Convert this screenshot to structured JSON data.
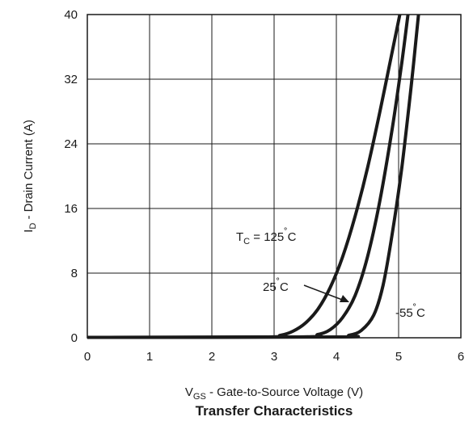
{
  "chart_data": {
    "type": "line",
    "title": "Transfer Characteristics",
    "xlabel": {
      "main": "V",
      "sub": "GS",
      "rest": "  -  Gate-to-Source Voltage (V)"
    },
    "ylabel": {
      "main": "I",
      "sub": "D",
      "rest": "  -  Drain Current (A)"
    },
    "xlim": [
      0,
      6
    ],
    "ylim": [
      0,
      40
    ],
    "x_ticks": [
      0,
      1,
      2,
      3,
      4,
      5,
      6
    ],
    "y_ticks": [
      0,
      8,
      16,
      24,
      32,
      40
    ],
    "grid": true,
    "series": [
      {
        "name": "T_C = 125°C",
        "points": [
          [
            0,
            0.05
          ],
          [
            2.8,
            0.1
          ],
          [
            3.1,
            0.3
          ],
          [
            3.3,
            0.8
          ],
          [
            3.5,
            1.8
          ],
          [
            3.7,
            3.5
          ],
          [
            3.9,
            6.2
          ],
          [
            4.1,
            10
          ],
          [
            4.3,
            15
          ],
          [
            4.5,
            21
          ],
          [
            4.7,
            28
          ],
          [
            4.9,
            35.5
          ],
          [
            5.02,
            40
          ]
        ]
      },
      {
        "name": "25°C",
        "points": [
          [
            0,
            0.05
          ],
          [
            3.4,
            0.1
          ],
          [
            3.7,
            0.4
          ],
          [
            3.9,
            1.0
          ],
          [
            4.1,
            2.5
          ],
          [
            4.3,
            5.2
          ],
          [
            4.5,
            10
          ],
          [
            4.7,
            17
          ],
          [
            4.9,
            26
          ],
          [
            5.05,
            34
          ],
          [
            5.15,
            40
          ]
        ]
      },
      {
        "name": "-55°C",
        "points": [
          [
            0,
            0.05
          ],
          [
            4.0,
            0.1
          ],
          [
            4.2,
            0.3
          ],
          [
            4.4,
            0.9
          ],
          [
            4.6,
            2.8
          ],
          [
            4.75,
            6.5
          ],
          [
            4.9,
            13
          ],
          [
            5.05,
            21
          ],
          [
            5.2,
            31
          ],
          [
            5.32,
            40
          ]
        ]
      }
    ],
    "annotations": [
      {
        "main": "T",
        "sub": "C",
        "rest": " = 125",
        "deg": "˚",
        "unit": "C"
      },
      {
        "text": "25",
        "deg": "˚",
        "unit": "C"
      },
      {
        "text": "-55",
        "deg": "˚",
        "unit": "C"
      }
    ]
  }
}
